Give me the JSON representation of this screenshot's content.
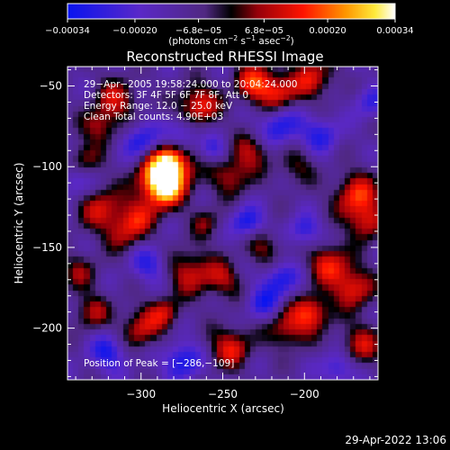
{
  "chart_data": {
    "type": "heatmap",
    "title": "Reconstructed RHESSI Image",
    "xlabel": "Heliocentric X (arcsec)",
    "ylabel": "Heliocentric Y (arcsec)",
    "xlim": [
      -345,
      -155
    ],
    "ylim": [
      -232,
      -38
    ],
    "x_ticks": [
      -300,
      -250,
      -200
    ],
    "x_tick_labels": [
      "−300",
      "−250",
      "−200"
    ],
    "y_ticks": [
      -50,
      -100,
      -150,
      -200
    ],
    "y_tick_labels": [
      "−50",
      "−100",
      "−150",
      "−200"
    ],
    "colorbar": {
      "range": [
        -0.00034,
        0.00034
      ],
      "ticks": [
        -0.00034,
        -0.0002,
        -6.8e-05,
        6.8e-05,
        0.0002,
        0.00034
      ],
      "tick_labels": [
        "−0.00034",
        "−0.00020",
        "−6.8e−05",
        "6.8e−05",
        "0.00020",
        "0.00034"
      ],
      "unit_prefix": "(photons cm",
      "unit_exp1": "−2",
      "unit_mid": " s",
      "unit_exp2": "−1",
      "unit_mid2": " asec",
      "unit_exp3": "−2",
      "unit_suffix": ")"
    },
    "annotations": [
      "29−Apr−2005 19:58:24.000 to 20:04:24.000",
      "Detectors: 3F 4F 5F 6F 7F 8F, Att 0",
      "Energy Range: 12.0 − 25.0 keV",
      "Clean     Total counts: 4.90E+03"
    ],
    "peak_label": "Position of Peak = [−286,−109]",
    "peak": [
      -286,
      -109
    ],
    "grid": false,
    "blobs": [
      {
        "x": -287,
        "y": -105,
        "s": 11,
        "a": 1.55
      },
      {
        "x": -281,
        "y": -98,
        "s": 8,
        "a": 1.0
      },
      {
        "x": -286,
        "y": -115,
        "s": 8,
        "a": 0.9
      },
      {
        "x": -265,
        "y": -62,
        "s": 9,
        "a": 1.05
      },
      {
        "x": -230,
        "y": -48,
        "s": 9,
        "a": 1.05
      },
      {
        "x": -215,
        "y": -55,
        "s": 8,
        "a": 0.85
      },
      {
        "x": -195,
        "y": -45,
        "s": 9,
        "a": 0.9
      },
      {
        "x": -315,
        "y": -58,
        "s": 9,
        "a": 0.8
      },
      {
        "x": -325,
        "y": -75,
        "s": 8,
        "a": 0.75
      },
      {
        "x": -335,
        "y": -95,
        "s": 7,
        "a": 0.6
      },
      {
        "x": -325,
        "y": -125,
        "s": 10,
        "a": 0.8
      },
      {
        "x": -310,
        "y": -140,
        "s": 9,
        "a": 0.75
      },
      {
        "x": -300,
        "y": -130,
        "s": 8,
        "a": 0.6
      },
      {
        "x": -245,
        "y": -105,
        "s": 9,
        "a": 0.8
      },
      {
        "x": -232,
        "y": -90,
        "s": 8,
        "a": 0.7
      },
      {
        "x": -168,
        "y": -118,
        "s": 10,
        "a": 1.05
      },
      {
        "x": -162,
        "y": -135,
        "s": 8,
        "a": 0.8
      },
      {
        "x": -205,
        "y": -100,
        "s": 8,
        "a": 0.55
      },
      {
        "x": -270,
        "y": -165,
        "s": 10,
        "a": 0.85
      },
      {
        "x": -250,
        "y": -170,
        "s": 8,
        "a": 0.7
      },
      {
        "x": -225,
        "y": -150,
        "s": 8,
        "a": 0.65
      },
      {
        "x": -185,
        "y": -160,
        "s": 9,
        "a": 0.95
      },
      {
        "x": -170,
        "y": -175,
        "s": 9,
        "a": 1.0
      },
      {
        "x": -338,
        "y": -165,
        "s": 8,
        "a": 0.6
      },
      {
        "x": -330,
        "y": -190,
        "s": 8,
        "a": 0.7
      },
      {
        "x": -300,
        "y": -200,
        "s": 9,
        "a": 0.85
      },
      {
        "x": -285,
        "y": -190,
        "s": 7,
        "a": 0.7
      },
      {
        "x": -245,
        "y": -212,
        "s": 9,
        "a": 0.95
      },
      {
        "x": -210,
        "y": -200,
        "s": 9,
        "a": 0.85
      },
      {
        "x": -195,
        "y": -190,
        "s": 8,
        "a": 1.0
      },
      {
        "x": -165,
        "y": -210,
        "s": 9,
        "a": 0.8
      },
      {
        "x": -260,
        "y": -135,
        "s": 7,
        "a": 0.55
      },
      {
        "x": -300,
        "y": -85,
        "s": 8,
        "a": -0.9
      },
      {
        "x": -275,
        "y": -80,
        "s": 7,
        "a": -0.7
      },
      {
        "x": -215,
        "y": -75,
        "s": 9,
        "a": -0.8
      },
      {
        "x": -190,
        "y": -80,
        "s": 8,
        "a": -0.7
      },
      {
        "x": -160,
        "y": -60,
        "s": 7,
        "a": -0.6
      },
      {
        "x": -295,
        "y": -160,
        "s": 8,
        "a": -0.7
      },
      {
        "x": -235,
        "y": -135,
        "s": 7,
        "a": -0.9
      },
      {
        "x": -215,
        "y": -170,
        "s": 8,
        "a": -0.8
      },
      {
        "x": -200,
        "y": -140,
        "s": 7,
        "a": -0.7
      },
      {
        "x": -320,
        "y": -215,
        "s": 8,
        "a": -0.8
      },
      {
        "x": -275,
        "y": -220,
        "s": 8,
        "a": -0.9
      },
      {
        "x": -225,
        "y": -185,
        "s": 7,
        "a": -0.7
      },
      {
        "x": -340,
        "y": -110,
        "s": 7,
        "a": -0.6
      },
      {
        "x": -180,
        "y": -225,
        "s": 7,
        "a": -0.7
      },
      {
        "x": -255,
        "y": -90,
        "s": 6,
        "a": -0.6
      }
    ]
  },
  "timestamp": "29-Apr-2022 13:06"
}
